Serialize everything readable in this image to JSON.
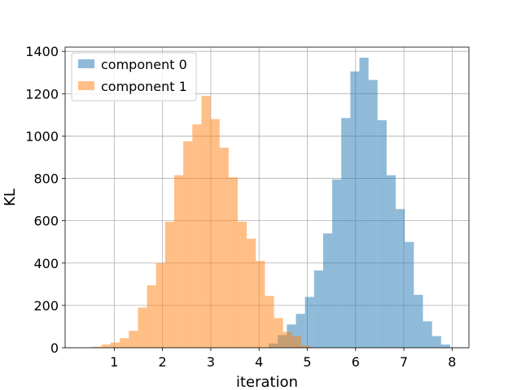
{
  "chart_data": {
    "type": "bar",
    "xlabel": "iteration",
    "ylabel": "KL",
    "xlim": [
      -0.018,
      8.348
    ],
    "ylim": [
      0,
      1420
    ],
    "x_ticks": [
      "1",
      "2",
      "3",
      "4",
      "5",
      "6",
      "7",
      "8"
    ],
    "y_ticks": [
      "0",
      "200",
      "400",
      "600",
      "800",
      "1000",
      "1200",
      "1400"
    ],
    "grid": true,
    "legend_position": "upper-left",
    "series": [
      {
        "name": "component 0",
        "color": "#1f77b4",
        "alpha": 0.5,
        "bin_start": 4.2,
        "bin_width": 0.188,
        "values": [
          20,
          60,
          110,
          160,
          240,
          365,
          540,
          795,
          1085,
          1305,
          1370,
          1265,
          1075,
          815,
          655,
          500,
          250,
          125,
          55,
          15,
          2
        ]
      },
      {
        "name": "component 1",
        "color": "#ff7f0e",
        "alpha": 0.5,
        "bin_start": 0.55,
        "bin_width": 0.188,
        "values": [
          5,
          15,
          25,
          45,
          80,
          190,
          295,
          400,
          595,
          815,
          975,
          1055,
          1190,
          1080,
          945,
          805,
          595,
          515,
          410,
          245,
          140,
          75,
          55,
          10
        ]
      }
    ]
  }
}
